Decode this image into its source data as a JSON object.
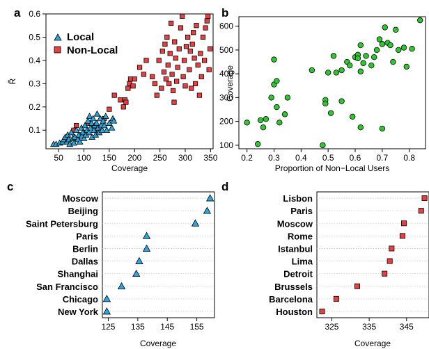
{
  "colors": {
    "local": "#29a9e0",
    "non_local": "#e84040",
    "green": "#2ec82e",
    "grid": "#c8c8c8"
  },
  "chart_data": [
    {
      "panel_letter": "a",
      "type": "scatter",
      "xlabel": "Coverage",
      "ylabel": "R̃",
      "xlim": [
        25,
        355
      ],
      "ylim": [
        0.02,
        0.6
      ],
      "xticks": [
        "50",
        "100",
        "150",
        "200",
        "250",
        "300",
        "350"
      ],
      "yticks": [
        "0.1",
        "0.2",
        "0.3",
        "0.4",
        "0.5",
        "0.6"
      ],
      "legend_position": "top-left",
      "series": [
        {
          "name": "Local",
          "marker": "triangle",
          "points": [
            [
              40,
              0.04
            ],
            [
              45,
              0.04
            ],
            [
              52,
              0.045
            ],
            [
              58,
              0.05
            ],
            [
              60,
              0.06
            ],
            [
              63,
              0.07
            ],
            [
              66,
              0.05
            ],
            [
              68,
              0.08
            ],
            [
              70,
              0.06
            ],
            [
              72,
              0.04
            ],
            [
              75,
              0.09
            ],
            [
              78,
              0.065
            ],
            [
              80,
              0.045
            ],
            [
              82,
              0.07
            ],
            [
              85,
              0.1
            ],
            [
              88,
              0.06
            ],
            [
              90,
              0.08
            ],
            [
              92,
              0.05
            ],
            [
              95,
              0.11
            ],
            [
              96,
              0.075
            ],
            [
              98,
              0.09
            ],
            [
              100,
              0.065
            ],
            [
              102,
              0.12
            ],
            [
              104,
              0.08
            ],
            [
              106,
              0.1
            ],
            [
              108,
              0.14
            ],
            [
              110,
              0.09
            ],
            [
              111,
              0.16
            ],
            [
              113,
              0.11
            ],
            [
              115,
              0.13
            ],
            [
              116,
              0.07
            ],
            [
              118,
              0.15
            ],
            [
              120,
              0.1
            ],
            [
              121,
              0.12
            ],
            [
              123,
              0.08
            ],
            [
              125,
              0.13
            ],
            [
              126,
              0.17
            ],
            [
              128,
              0.11
            ],
            [
              130,
              0.09
            ],
            [
              132,
              0.15
            ],
            [
              134,
              0.12
            ],
            [
              136,
              0.1
            ],
            [
              138,
              0.14
            ],
            [
              140,
              0.12
            ],
            [
              143,
              0.16
            ],
            [
              145,
              0.1
            ],
            [
              150,
              0.13
            ],
            [
              155,
              0.11
            ],
            [
              157,
              0.15
            ],
            [
              159,
              0.14
            ]
          ]
        },
        {
          "name": "Non-Local",
          "marker": "square",
          "points": [
            [
              80,
              0.1
            ],
            [
              85,
              0.12
            ],
            [
              95,
              0.08
            ],
            [
              105,
              0.09
            ],
            [
              110,
              0.13
            ],
            [
              120,
              0.11
            ],
            [
              128,
              0.1
            ],
            [
              140,
              0.15
            ],
            [
              150,
              0.19
            ],
            [
              160,
              0.25
            ],
            [
              172,
              0.23
            ],
            [
              178,
              0.2
            ],
            [
              181,
              0.23
            ],
            [
              183,
              0.22
            ],
            [
              187,
              0.28
            ],
            [
              190,
              0.3
            ],
            [
              192,
              0.32
            ],
            [
              197,
              0.29
            ],
            [
              200,
              0.32
            ],
            [
              210,
              0.37
            ],
            [
              218,
              0.34
            ],
            [
              223,
              0.4
            ],
            [
              235,
              0.33
            ],
            [
              240,
              0.3
            ],
            [
              244,
              0.25
            ],
            [
              248,
              0.4
            ],
            [
              253,
              0.28
            ],
            [
              255,
              0.44
            ],
            [
              258,
              0.35
            ],
            [
              260,
              0.47
            ],
            [
              262,
              0.32
            ],
            [
              264,
              0.5
            ],
            [
              266,
              0.38
            ],
            [
              268,
              0.3
            ],
            [
              270,
              0.43
            ],
            [
              272,
              0.56
            ],
            [
              274,
              0.34
            ],
            [
              276,
              0.27
            ],
            [
              278,
              0.22
            ],
            [
              279,
              0.48
            ],
            [
              281,
              0.41
            ],
            [
              283,
              0.31
            ],
            [
              285,
              0.37
            ],
            [
              288,
              0.45
            ],
            [
              291,
              0.54
            ],
            [
              294,
              0.59
            ],
            [
              296,
              0.33
            ],
            [
              298,
              0.4
            ],
            [
              300,
              0.29
            ],
            [
              302,
              0.46
            ],
            [
              305,
              0.5
            ],
            [
              308,
              0.36
            ],
            [
              310,
              0.44
            ],
            [
              312,
              0.28
            ],
            [
              314,
              0.47
            ],
            [
              316,
              0.52
            ],
            [
              318,
              0.41
            ],
            [
              320,
              0.3
            ],
            [
              322,
              0.55
            ],
            [
              325,
              0.38
            ],
            [
              328,
              0.25
            ],
            [
              330,
              0.43
            ],
            [
              332,
              0.33
            ],
            [
              335,
              0.5
            ],
            [
              338,
              0.4
            ],
            [
              340,
              0.54
            ],
            [
              343,
              0.57
            ],
            [
              345,
              0.59
            ],
            [
              347,
              0.36
            ],
            [
              349,
              0.45
            ]
          ]
        }
      ]
    },
    {
      "panel_letter": "b",
      "type": "scatter",
      "xlabel": "Proportion of Non−Local Users",
      "ylabel": "Coverage",
      "xlim": [
        0.17,
        0.86
      ],
      "ylim": [
        85,
        640
      ],
      "xticks": [
        "0.2",
        "0.3",
        "0.4",
        "0.5",
        "0.6",
        "0.7",
        "0.8"
      ],
      "yticks": [
        "100",
        "200",
        "300",
        "400",
        "500",
        "600"
      ],
      "series": [
        {
          "name": "",
          "marker": "circle",
          "points": [
            [
              0.2,
              195
            ],
            [
              0.24,
              105
            ],
            [
              0.25,
              205
            ],
            [
              0.26,
              175
            ],
            [
              0.27,
              210
            ],
            [
              0.29,
              300
            ],
            [
              0.3,
              460
            ],
            [
              0.3,
              355
            ],
            [
              0.31,
              260
            ],
            [
              0.31,
              370
            ],
            [
              0.32,
              195
            ],
            [
              0.34,
              230
            ],
            [
              0.35,
              300
            ],
            [
              0.44,
              415
            ],
            [
              0.48,
              100
            ],
            [
              0.49,
              290
            ],
            [
              0.49,
              275
            ],
            [
              0.5,
              405
            ],
            [
              0.51,
              235
            ],
            [
              0.52,
              475
            ],
            [
              0.53,
              405
            ],
            [
              0.55,
              415
            ],
            [
              0.55,
              285
            ],
            [
              0.57,
              450
            ],
            [
              0.58,
              435
            ],
            [
              0.59,
              220
            ],
            [
              0.6,
              470
            ],
            [
              0.61,
              480
            ],
            [
              0.61,
              465
            ],
            [
              0.62,
              410
            ],
            [
              0.62,
              175
            ],
            [
              0.62,
              520
            ],
            [
              0.63,
              445
            ],
            [
              0.64,
              475
            ],
            [
              0.66,
              435
            ],
            [
              0.67,
              470
            ],
            [
              0.68,
              500
            ],
            [
              0.69,
              545
            ],
            [
              0.7,
              525
            ],
            [
              0.7,
              170
            ],
            [
              0.71,
              595
            ],
            [
              0.72,
              530
            ],
            [
              0.73,
              520
            ],
            [
              0.74,
              450
            ],
            [
              0.75,
              585
            ],
            [
              0.76,
              500
            ],
            [
              0.78,
              510
            ],
            [
              0.79,
              430
            ],
            [
              0.81,
              505
            ],
            [
              0.84,
              625
            ]
          ]
        }
      ]
    },
    {
      "panel_letter": "c",
      "type": "dot",
      "xlabel": "Coverage",
      "marker": "triangle",
      "xlim": [
        123,
        161
      ],
      "xticks": [
        "125",
        "135",
        "145",
        "155"
      ],
      "categories": [
        "Moscow",
        "Beijing",
        "Saint Petersburg",
        "Paris",
        "Berlin",
        "Dallas",
        "Shanghai",
        "San Francisco",
        "Chicago",
        "New York"
      ],
      "values": [
        159.5,
        158.5,
        154.5,
        138.0,
        138.0,
        135.5,
        134.5,
        129.5,
        124.5,
        124.5
      ]
    },
    {
      "panel_letter": "d",
      "type": "dot",
      "xlabel": "Coverage",
      "marker": "square",
      "xlim": [
        321,
        351
      ],
      "xticks": [
        "325",
        "335",
        "345"
      ],
      "categories": [
        "Lisbon",
        "Paris",
        "Moscow",
        "Rome",
        "Istanbul",
        "Lima",
        "Detroit",
        "Brussels",
        "Barcelona",
        "Houston"
      ],
      "values": [
        349.8,
        348.9,
        344.3,
        343.9,
        341.0,
        340.5,
        339.1,
        331.8,
        326.2,
        322.4
      ]
    }
  ]
}
